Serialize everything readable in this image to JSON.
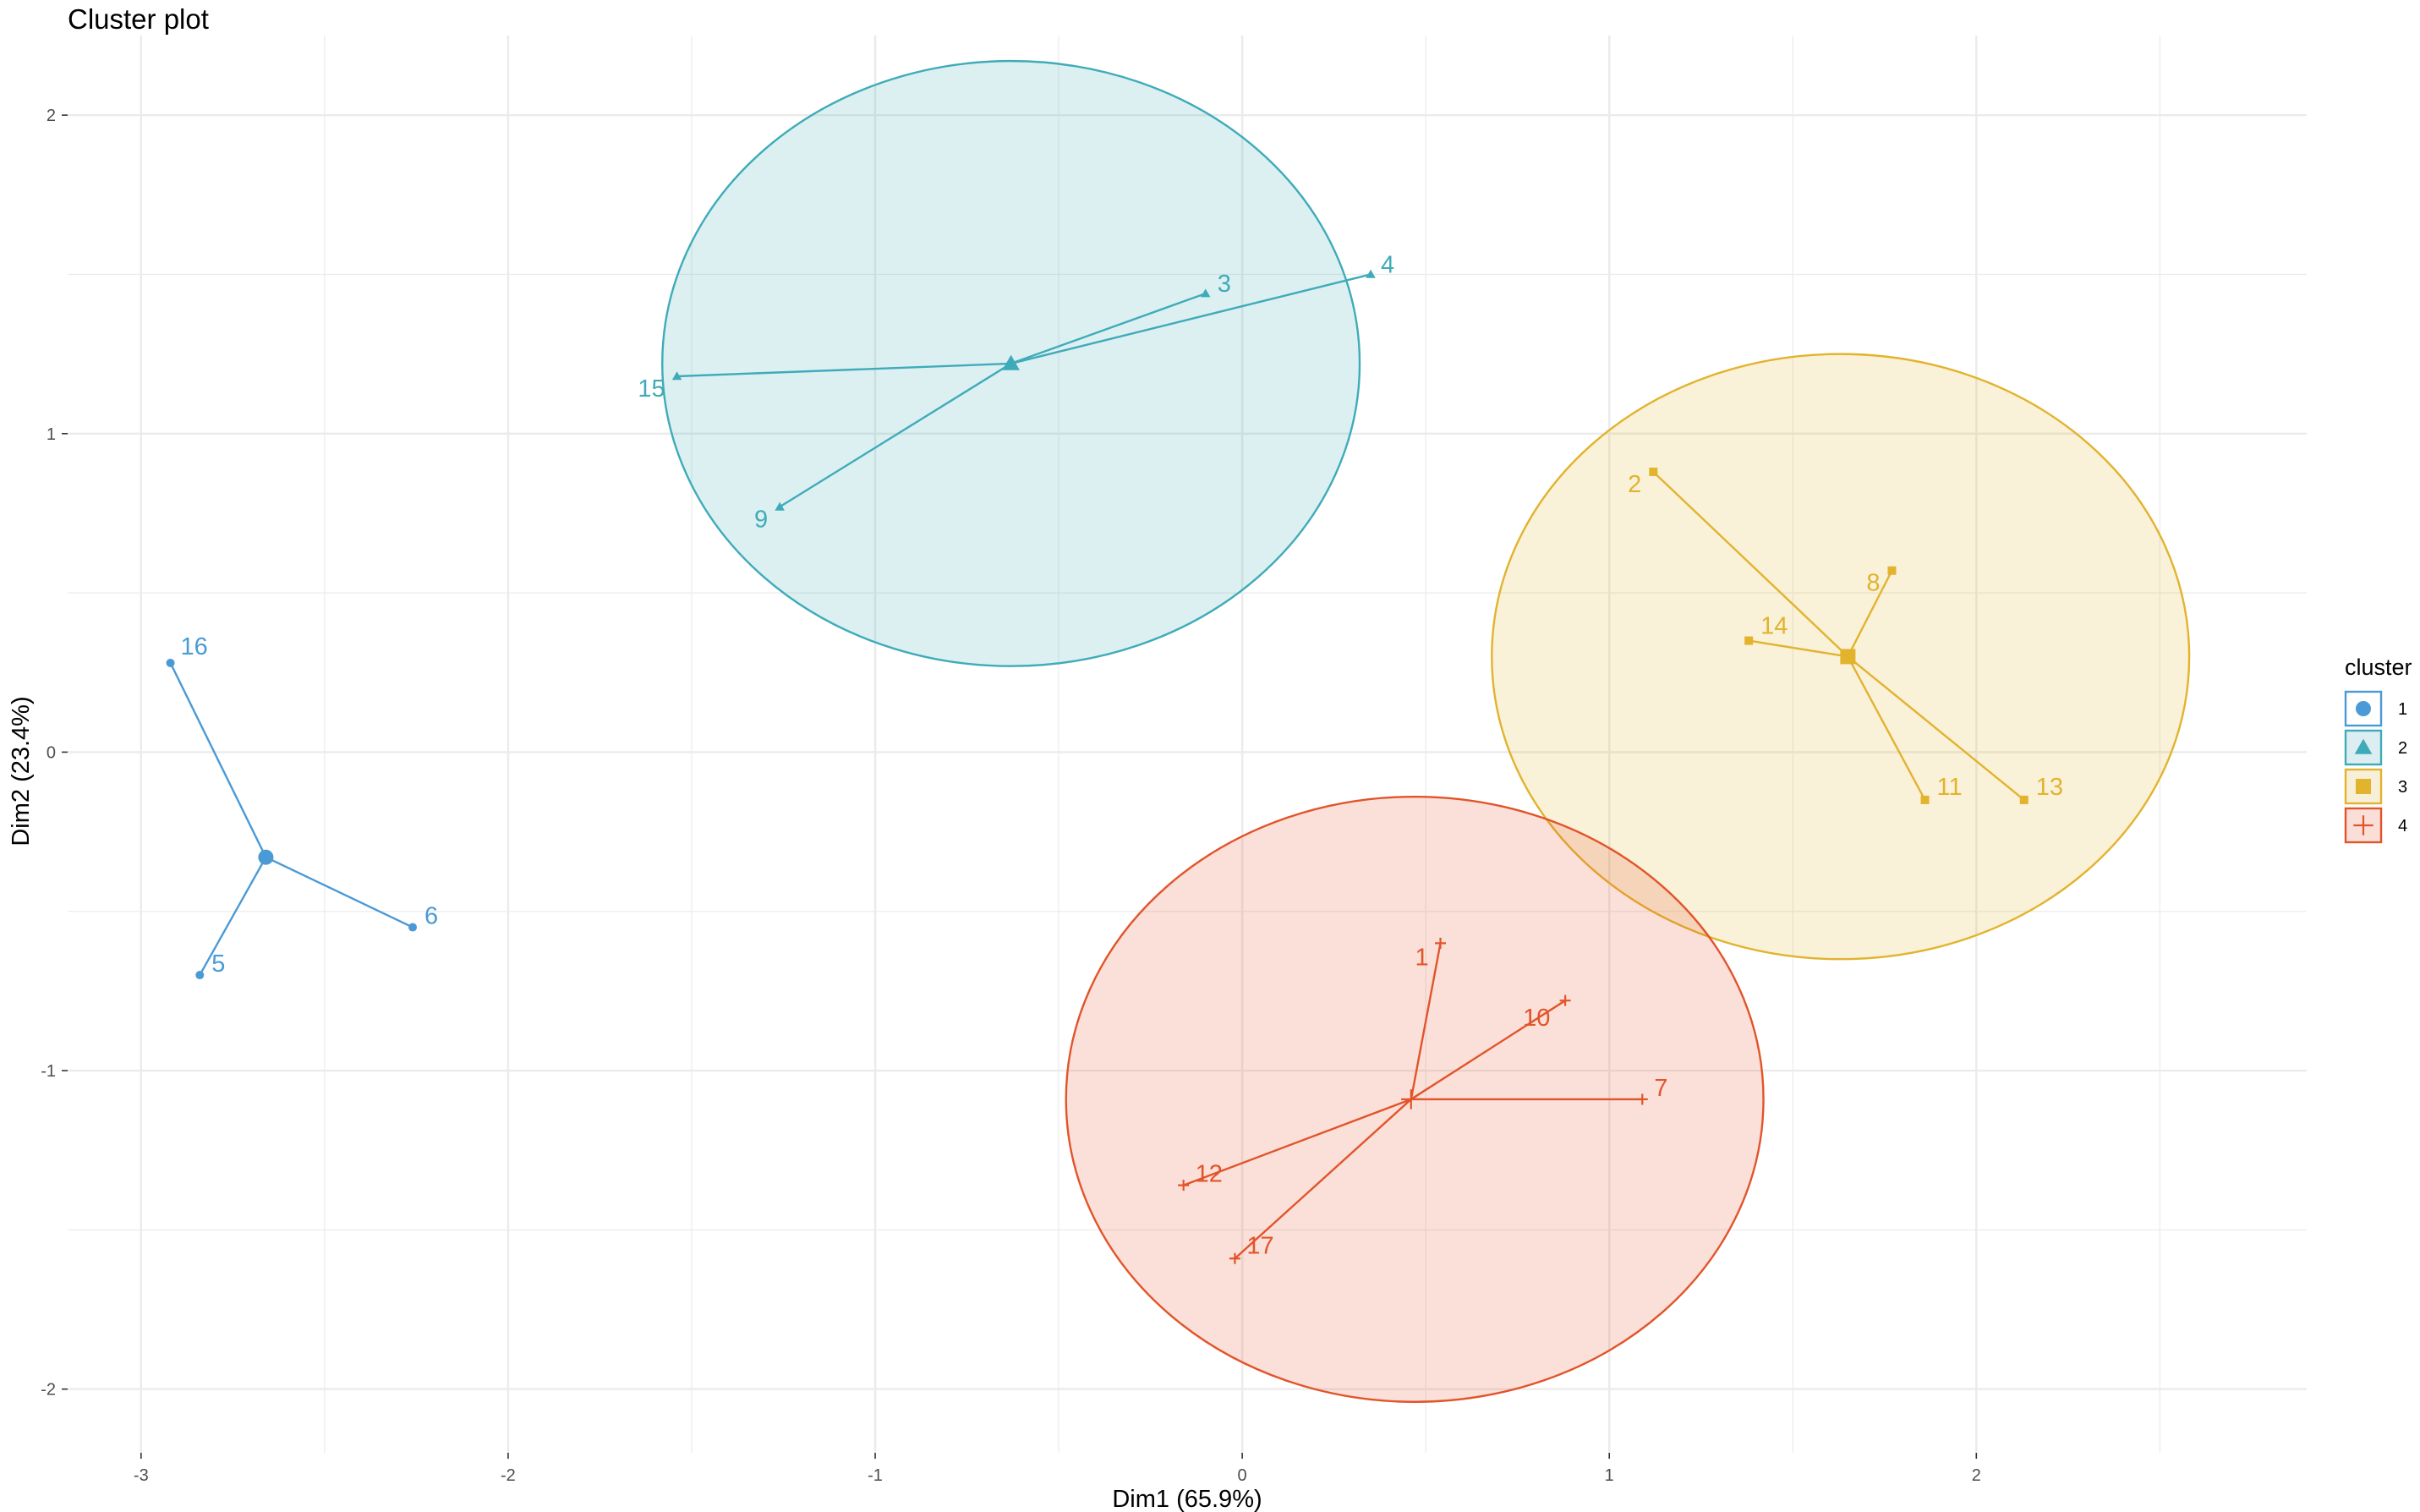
{
  "chart_data": {
    "type": "scatter",
    "title": "Cluster plot",
    "xlabel": "Dim1 (65.9%)",
    "ylabel": "Dim2 (23.4%)",
    "xlim": [
      -3.2,
      2.9
    ],
    "ylim": [
      -2.2,
      2.25
    ],
    "x_ticks": [
      -3,
      -2,
      -1,
      0,
      1,
      2
    ],
    "y_ticks": [
      -2,
      -1,
      0,
      1,
      2
    ],
    "x_tick_labels": [
      "-3",
      "-2",
      "-1",
      "0",
      "1",
      "2"
    ],
    "y_tick_labels": [
      "-2",
      "-1",
      "0",
      "1",
      "2"
    ],
    "grid": true,
    "legend": {
      "title": "cluster",
      "position": "right"
    },
    "clusters": [
      {
        "name": "1",
        "color": "#4a9ad6",
        "shape": "circle",
        "center": [
          -2.66,
          -0.33
        ],
        "ellipse": null,
        "points": [
          {
            "label": "16",
            "x": -2.92,
            "y": 0.28
          },
          {
            "label": "5",
            "x": -2.84,
            "y": -0.7
          },
          {
            "label": "6",
            "x": -2.26,
            "y": -0.55
          }
        ]
      },
      {
        "name": "2",
        "color": "#3fabb9",
        "fill": "#ddeef2",
        "shape": "triangle",
        "center": [
          -0.63,
          1.22
        ],
        "ellipse": {
          "cx": -0.63,
          "cy": 1.22,
          "rx": 0.95,
          "ry": 0.95
        },
        "points": [
          {
            "label": "3",
            "x": -0.1,
            "y": 1.44
          },
          {
            "label": "4",
            "x": 0.35,
            "y": 1.5
          },
          {
            "label": "15",
            "x": -1.54,
            "y": 1.18
          },
          {
            "label": "9",
            "x": -1.26,
            "y": 0.77
          }
        ]
      },
      {
        "name": "3",
        "color": "#e2b32d",
        "fill": "#f7efd8",
        "shape": "square",
        "center": [
          1.65,
          0.3
        ],
        "ellipse": {
          "cx": 1.63,
          "cy": 0.3,
          "rx": 0.95,
          "ry": 0.95
        },
        "points": [
          {
            "label": "2",
            "x": 1.12,
            "y": 0.88
          },
          {
            "label": "8",
            "x": 1.77,
            "y": 0.57
          },
          {
            "label": "14",
            "x": 1.38,
            "y": 0.35
          },
          {
            "label": "11",
            "x": 1.86,
            "y": -0.15
          },
          {
            "label": "13",
            "x": 2.13,
            "y": -0.15
          }
        ]
      },
      {
        "name": "4",
        "color": "#e2542a",
        "fill": "#f9dfd8",
        "shape": "plus",
        "center": [
          0.46,
          -1.09
        ],
        "ellipse": {
          "cx": 0.47,
          "cy": -1.09,
          "rx": 0.95,
          "ry": 0.95
        },
        "points": [
          {
            "label": "1",
            "x": 0.54,
            "y": -0.6
          },
          {
            "label": "10",
            "x": 0.88,
            "y": -0.78
          },
          {
            "label": "7",
            "x": 1.09,
            "y": -1.09
          },
          {
            "label": "12",
            "x": -0.16,
            "y": -1.36
          },
          {
            "label": "17",
            "x": -0.02,
            "y": -1.59
          }
        ]
      }
    ]
  }
}
